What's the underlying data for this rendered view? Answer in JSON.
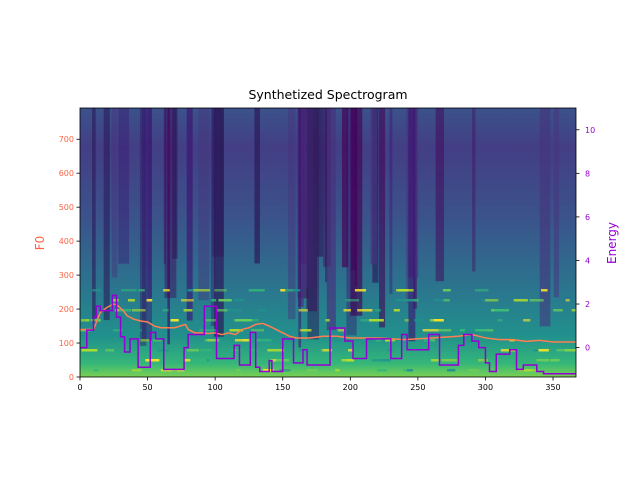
{
  "chart_data": {
    "type": "line",
    "title": "Synthetized Spectrogram",
    "background": "spectrogram",
    "xlim": [
      0,
      367
    ],
    "x_ticks": [
      0,
      50,
      100,
      150,
      200,
      250,
      300,
      350
    ],
    "left_axis": {
      "label": "F0",
      "color": "#ff6347",
      "lim": [
        0,
        792
      ],
      "ticks": [
        0,
        100,
        200,
        300,
        400,
        500,
        600,
        700
      ]
    },
    "right_axis": {
      "label": "Energy",
      "color": "#9400d3",
      "lim": [
        -1.35,
        11.0
      ],
      "ticks": [
        0,
        2,
        4,
        6,
        8,
        10
      ]
    },
    "series": [
      {
        "axis": "left",
        "color": "#ff7f50",
        "step": false,
        "x": [
          0,
          5,
          10,
          15,
          20,
          25,
          28,
          32,
          35,
          40,
          45,
          50,
          55,
          60,
          70,
          78,
          80,
          85,
          90,
          95,
          100,
          105,
          110,
          115,
          120,
          125,
          130,
          135,
          140,
          145,
          150,
          155,
          160,
          170,
          180,
          190,
          200,
          220,
          240,
          260,
          280,
          290,
          300,
          310,
          320,
          330,
          340,
          350,
          367
        ],
        "y": [
          140,
          140,
          140,
          190,
          205,
          215,
          210,
          195,
          180,
          170,
          165,
          162,
          150,
          145,
          145,
          155,
          140,
          130,
          130,
          128,
          130,
          125,
          130,
          125,
          140,
          145,
          155,
          158,
          150,
          140,
          130,
          120,
          115,
          115,
          120,
          120,
          115,
          115,
          110,
          115,
          120,
          125,
          115,
          110,
          110,
          105,
          108,
          103,
          103
        ]
      },
      {
        "axis": "right",
        "color": "#9400d3",
        "step": true,
        "x": [
          0,
          5,
          10,
          12,
          15,
          22,
          24,
          27,
          30,
          33,
          37,
          43,
          52,
          56,
          62,
          77,
          80,
          83,
          92,
          101,
          110,
          114,
          118,
          126,
          130,
          133,
          140,
          142,
          150,
          158,
          165,
          168,
          172,
          185,
          196,
          202,
          212,
          230,
          238,
          242,
          250,
          258,
          266,
          280,
          284,
          290,
          295,
          300,
          303,
          308,
          313,
          318,
          323,
          328,
          333,
          338,
          343,
          348,
          358,
          367
        ],
        "y": [
          0,
          0.8,
          1.4,
          1.9,
          1.7,
          1.7,
          2.4,
          1.4,
          0.5,
          -0.2,
          0.4,
          -0.9,
          0.7,
          0.4,
          -1.0,
          0,
          0.6,
          0.6,
          1.9,
          -0.5,
          -0.5,
          0.1,
          -0.8,
          0.7,
          -0.9,
          -1.1,
          -0.6,
          -1.1,
          0.4,
          -0.7,
          -0.1,
          -0.8,
          -0.8,
          0.9,
          0.3,
          -0.5,
          0.4,
          -0.5,
          0.6,
          -0.1,
          -0.1,
          0.6,
          -0.8,
          0.1,
          0.6,
          0.3,
          0,
          -0.7,
          -1.1,
          -0.3,
          -0.3,
          -0.1,
          -1.0,
          -0.8,
          -0.8,
          -1.1,
          -1.2,
          -1.2,
          -1.2,
          -1.2
        ]
      }
    ]
  }
}
